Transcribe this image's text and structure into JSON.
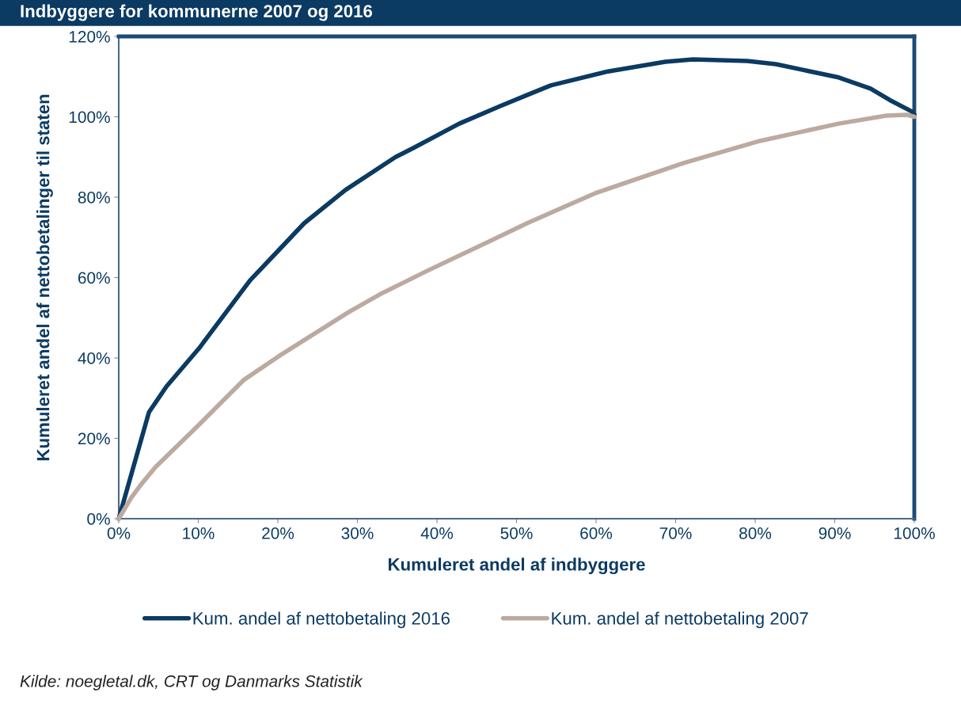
{
  "chart_data": {
    "type": "line",
    "title": "Indbyggere for kommunerne 2007 og 2016",
    "xlabel": "Kumuleret andel af indbyggere",
    "ylabel": "Kumuleret andel af nettobetalinger til staten",
    "series": [
      {
        "name": "Kum. andel af nettobetaling 2016",
        "color": "#0b3a62",
        "x": [
          0,
          1.6,
          3.8,
          6,
          10.1,
          16.5,
          20.1,
          23.3,
          28.5,
          34.8,
          37.2,
          42.8,
          48,
          51.3,
          54.3,
          61.5,
          68.7,
          72.2,
          79,
          82.6,
          90.5,
          94.5,
          96.9,
          99.7,
          100
        ],
        "values": [
          0,
          11.2,
          26.5,
          32.9,
          42.4,
          59.3,
          66.8,
          73.5,
          81.8,
          90,
          92.4,
          98.3,
          102.7,
          105.4,
          107.8,
          111.3,
          113.7,
          114.3,
          113.9,
          113.1,
          109.8,
          107,
          104.2,
          101.3,
          100.5
        ]
      },
      {
        "name": "Kum. andel af nettobetaling 2007",
        "color": "#bcaaa0",
        "x": [
          0,
          1.6,
          2.8,
          4.6,
          10.1,
          15.7,
          20.1,
          22.9,
          28.9,
          32.8,
          38.8,
          46.8,
          51.3,
          59.9,
          71,
          80.6,
          90.5,
          96.5,
          99.1,
          100
        ],
        "values": [
          0,
          5.3,
          8.5,
          12.8,
          23.4,
          34.5,
          40.4,
          43.9,
          51.4,
          55.8,
          61.7,
          69.2,
          73.5,
          81,
          88.5,
          94,
          98.3,
          100.3,
          100.5,
          100
        ]
      }
    ],
    "xlim": [
      0,
      100
    ],
    "ylim": [
      0,
      120
    ],
    "xticks": [
      {
        "value": 0,
        "label": "0%"
      },
      {
        "value": 10,
        "label": "10%"
      },
      {
        "value": 20,
        "label": "20%"
      },
      {
        "value": 30,
        "label": "30%"
      },
      {
        "value": 40,
        "label": "40%"
      },
      {
        "value": 50,
        "label": "50%"
      },
      {
        "value": 60,
        "label": "60%"
      },
      {
        "value": 70,
        "label": "70%"
      },
      {
        "value": 80,
        "label": "80%"
      },
      {
        "value": 90,
        "label": "90%"
      },
      {
        "value": 100,
        "label": "100%"
      }
    ],
    "yticks": [
      {
        "value": 0,
        "label": "0%"
      },
      {
        "value": 20,
        "label": "20%"
      },
      {
        "value": 40,
        "label": "40%"
      },
      {
        "value": 60,
        "label": "60%"
      },
      {
        "value": 80,
        "label": "80%"
      },
      {
        "value": 100,
        "label": "100%"
      },
      {
        "value": 120,
        "label": "120%"
      }
    ],
    "grid": false,
    "legend": "bottom",
    "marker": "none",
    "line_style": "solid",
    "annotations": [
      "Kilde: noegletal.dk, CRT og Danmarks Statistik"
    ]
  }
}
